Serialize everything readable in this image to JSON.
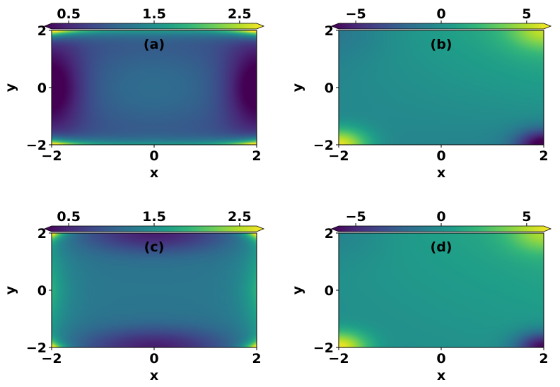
{
  "colormap": "viridis",
  "colors": {
    "viridis_stops": [
      "#440154",
      "#482878",
      "#3e4989",
      "#31688e",
      "#26828e",
      "#1f9e89",
      "#35b779",
      "#6ece58",
      "#b5de2b",
      "#fde725"
    ],
    "frame": "#000000",
    "background": "#ffffff"
  },
  "chart_data": [
    {
      "type": "heatmap",
      "panel_label": "(a)",
      "xlabel": "x",
      "ylabel": "y",
      "xlim": [
        -2,
        2
      ],
      "ylim": [
        -2,
        2
      ],
      "xticks": [
        -2,
        0,
        2
      ],
      "yticks": [
        -2,
        0,
        2
      ],
      "xtick_labels": [
        "−2",
        "0",
        "2"
      ],
      "ytick_labels": [
        "−2",
        "0",
        "2"
      ],
      "colorbar": {
        "position": "top",
        "extend": "both",
        "range": [
          0.3,
          2.7
        ],
        "ticks": [
          0.5,
          1.5,
          2.5
        ],
        "tick_labels": [
          "0.5",
          "1.5",
          "2.5"
        ]
      },
      "field": {
        "kind": "a",
        "base": 0.8,
        "center_value": 1.15,
        "corner_value": 2.9,
        "side_value": 0.5
      }
    },
    {
      "type": "heatmap",
      "panel_label": "(b)",
      "xlabel": "x",
      "ylabel": "y",
      "xlim": [
        -2,
        2
      ],
      "ylim": [
        -2,
        2
      ],
      "xticks": [
        -2,
        0,
        2
      ],
      "yticks": [
        -2,
        0,
        2
      ],
      "xtick_labels": [
        "−2",
        "0",
        "2"
      ],
      "ytick_labels": [
        "−2",
        "0",
        "2"
      ],
      "colorbar": {
        "position": "top",
        "extend": "both",
        "range": [
          -6,
          6
        ],
        "ticks": [
          -5,
          0,
          5
        ],
        "tick_labels": [
          "−5",
          "0",
          "5"
        ]
      },
      "field": {
        "kind": "b",
        "center_value": 0.5,
        "corner_bl": 6,
        "corner_br": -6,
        "corner_tr": 4,
        "corner_tl": -1.5
      }
    },
    {
      "type": "heatmap",
      "panel_label": "(c)",
      "xlabel": "x",
      "ylabel": "y",
      "xlim": [
        -2,
        2
      ],
      "ylim": [
        -2,
        2
      ],
      "xticks": [
        -2,
        0,
        2
      ],
      "yticks": [
        -2,
        0,
        2
      ],
      "xtick_labels": [
        "−2",
        "0",
        "2"
      ],
      "ytick_labels": [
        "−2",
        "0",
        "2"
      ],
      "colorbar": {
        "position": "top",
        "extend": "both",
        "range": [
          0.3,
          2.7
        ],
        "ticks": [
          0.5,
          1.5,
          2.5
        ],
        "tick_labels": [
          "0.5",
          "1.5",
          "2.5"
        ]
      },
      "field": {
        "kind": "c",
        "center_value": 1.1,
        "corner_value": 2.9,
        "edge_value": 0.5,
        "side_value": 1.9
      }
    },
    {
      "type": "heatmap",
      "panel_label": "(d)",
      "xlabel": "x",
      "ylabel": "y",
      "xlim": [
        -2,
        2
      ],
      "ylim": [
        -2,
        2
      ],
      "xticks": [
        -2,
        0,
        2
      ],
      "yticks": [
        -2,
        0,
        2
      ],
      "xtick_labels": [
        "−2",
        "0",
        "2"
      ],
      "ytick_labels": [
        "−2",
        "0",
        "2"
      ],
      "colorbar": {
        "position": "top",
        "extend": "both",
        "range": [
          -6,
          6
        ],
        "ticks": [
          -5,
          0,
          5
        ],
        "tick_labels": [
          "−5",
          "0",
          "5"
        ]
      },
      "field": {
        "kind": "d",
        "center_value": 0.5,
        "corner_bl": 6,
        "corner_br": -6,
        "corner_tr": 4,
        "corner_tl": -1.5
      }
    }
  ]
}
